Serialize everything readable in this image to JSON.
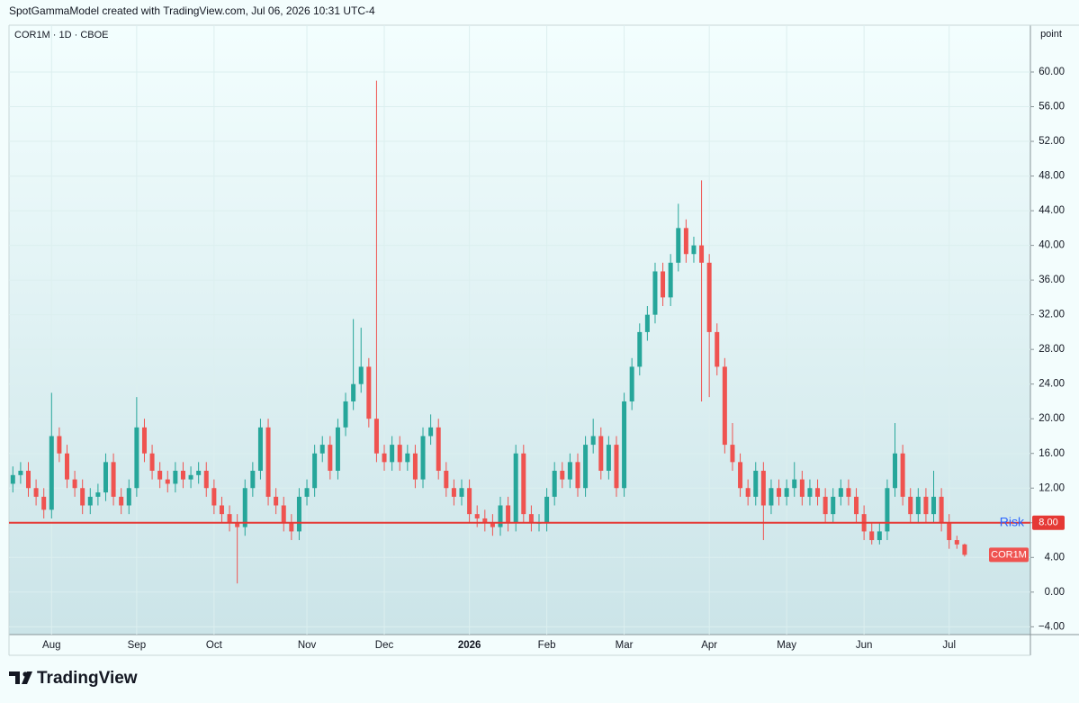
{
  "chart_data": {
    "type": "candlestick",
    "header": "SpotGammaModel created with TradingView.com, Jul 06, 2026 10:31 UTC-4",
    "symbol": "COR1M · 1D · CBOE",
    "y_unit": "point",
    "branding": "TradingView",
    "name": "COR1M",
    "up_color": "#26a69a",
    "down_color": "#ef5350",
    "grid": true,
    "ylim": [
      -4.9,
      65.4
    ],
    "yticks": [
      {
        "value": -4,
        "label": "−4.00"
      },
      {
        "value": 0,
        "label": "0.00"
      },
      {
        "value": 4,
        "label": "4.00"
      },
      {
        "value": 8,
        "label": "8.00"
      },
      {
        "value": 12,
        "label": "12.00"
      },
      {
        "value": 16,
        "label": "16.00"
      },
      {
        "value": 20,
        "label": "20.00"
      },
      {
        "value": 24,
        "label": "24.00"
      },
      {
        "value": 28,
        "label": "28.00"
      },
      {
        "value": 32,
        "label": "32.00"
      },
      {
        "value": 36,
        "label": "36.00"
      },
      {
        "value": 40,
        "label": "40.00"
      },
      {
        "value": 44,
        "label": "44.00"
      },
      {
        "value": 48,
        "label": "48.00"
      },
      {
        "value": 52,
        "label": "52.00"
      },
      {
        "value": 56,
        "label": "56.00"
      },
      {
        "value": 60,
        "label": "60.00"
      }
    ],
    "risk_line": {
      "value": 8,
      "label": "Risk",
      "value_label": "8.00",
      "color": "#e53935",
      "text_color": "#2962ff"
    },
    "categories": [
      null,
      null,
      null,
      null,
      null,
      "Aug",
      null,
      null,
      null,
      null,
      null,
      null,
      null,
      null,
      null,
      null,
      "Sep",
      null,
      null,
      null,
      null,
      null,
      null,
      null,
      null,
      null,
      "Oct",
      null,
      null,
      null,
      null,
      null,
      null,
      null,
      null,
      null,
      null,
      null,
      "Nov",
      null,
      null,
      null,
      null,
      null,
      null,
      null,
      null,
      null,
      "Dec",
      null,
      null,
      null,
      null,
      null,
      null,
      null,
      null,
      null,
      null,
      "2026",
      null,
      null,
      null,
      null,
      null,
      null,
      null,
      null,
      null,
      "Feb",
      null,
      null,
      null,
      null,
      null,
      null,
      null,
      null,
      null,
      "Mar",
      null,
      null,
      null,
      null,
      null,
      null,
      null,
      null,
      null,
      null,
      "Apr",
      null,
      null,
      null,
      null,
      null,
      null,
      null,
      null,
      null,
      "May",
      null,
      null,
      null,
      null,
      null,
      null,
      null,
      null,
      null,
      "Jun",
      null,
      null,
      null,
      null,
      null,
      null,
      null,
      null,
      null,
      null,
      "Jul",
      null,
      null,
      null,
      null,
      null,
      null,
      null,
      null,
      null,
      null
    ],
    "open": [
      12.5,
      13.5,
      14,
      12,
      11,
      9.5,
      18,
      16,
      13,
      12,
      10,
      11,
      11.5,
      15,
      11,
      10,
      12,
      19,
      16,
      14,
      13,
      12.5,
      14,
      13,
      13.5,
      14,
      12,
      10,
      9,
      8,
      7.5,
      12,
      14,
      19,
      11,
      10,
      8,
      7,
      11,
      12,
      16,
      17,
      14,
      19,
      22,
      24,
      26,
      20,
      16,
      15,
      17,
      15,
      16,
      13,
      18,
      19,
      14,
      12,
      11,
      12,
      9,
      8.5,
      8,
      7.5,
      10,
      8,
      16,
      9,
      8,
      8,
      11,
      14,
      13,
      15,
      12,
      17,
      18,
      14,
      17,
      12,
      22,
      26,
      30,
      32,
      37,
      34,
      38,
      42,
      39,
      40,
      38,
      30,
      26,
      17,
      15,
      12,
      11,
      14,
      10,
      12,
      11,
      12,
      13,
      11,
      12,
      11,
      9,
      11,
      12,
      11,
      9,
      7,
      6,
      7,
      12,
      16,
      11,
      9,
      11,
      9,
      11,
      8,
      6,
      5.5,
      null,
      null,
      null,
      null,
      null,
      null,
      null,
      null
    ],
    "high": [
      14.5,
      15,
      15,
      13,
      12,
      23,
      19,
      17,
      14,
      13,
      12,
      12.5,
      16,
      16,
      12,
      13,
      22.5,
      20,
      17,
      15,
      14,
      15,
      15,
      14.5,
      15,
      15,
      13,
      11,
      10,
      9,
      13,
      15,
      20,
      20,
      12,
      11,
      9,
      12,
      13,
      17,
      18,
      18,
      20,
      23,
      31.5,
      30.5,
      27,
      59,
      17,
      18,
      18,
      17,
      17,
      19,
      20.5,
      20,
      15,
      13,
      13,
      13,
      10,
      9.5,
      9,
      11,
      11,
      17,
      17,
      10,
      9,
      12,
      15,
      15,
      16,
      16,
      18,
      20,
      19,
      18,
      18,
      23,
      27,
      31,
      33,
      38,
      38,
      39,
      44.8,
      43,
      41,
      47.5,
      39,
      31,
      27,
      19.5,
      16,
      13,
      15,
      15,
      13,
      13,
      13,
      15,
      14,
      13,
      13,
      12,
      12,
      13,
      13,
      12,
      10,
      8,
      8,
      13,
      19.5,
      17,
      12,
      12,
      12,
      14,
      12,
      9,
      6.5,
      5.6,
      null,
      null,
      null,
      null,
      null,
      null,
      null,
      null
    ],
    "low": [
      11.5,
      12.5,
      11,
      10,
      8.5,
      8.5,
      15,
      12,
      11,
      9,
      9,
      10,
      10.5,
      10,
      9,
      9,
      11,
      15,
      13,
      12,
      11.5,
      11.5,
      12,
      12,
      12.5,
      11,
      9,
      8,
      7,
      1,
      6.5,
      11,
      13,
      10,
      9,
      7,
      6,
      6,
      10,
      11,
      15,
      13,
      13,
      18,
      21,
      23,
      19,
      15,
      14,
      14,
      14,
      14,
      12,
      12,
      17,
      13,
      11,
      10,
      10,
      8,
      7.5,
      7,
      6.5,
      6.5,
      7,
      7,
      8,
      7,
      7,
      7,
      10,
      12,
      12,
      11,
      11,
      16,
      13,
      13,
      11,
      11,
      21,
      25,
      29,
      31,
      33,
      33,
      37,
      38,
      38,
      22,
      22.5,
      25,
      16,
      14,
      11,
      10,
      10,
      6,
      9,
      10,
      10,
      11,
      10,
      10,
      10,
      8,
      8,
      10,
      10,
      8,
      6,
      5.5,
      5.5,
      6,
      11,
      10,
      8,
      8,
      8,
      8,
      7,
      5,
      5,
      4.1,
      null,
      null,
      null,
      null,
      null,
      null,
      null,
      null
    ],
    "close": [
      13.5,
      14,
      12,
      11,
      9.5,
      18,
      16,
      13,
      12,
      10,
      11,
      11.5,
      15,
      11,
      10,
      12,
      19,
      16,
      14,
      13,
      12.5,
      14,
      13,
      13.5,
      14,
      12,
      10,
      9,
      8,
      7.5,
      12,
      14,
      19,
      11,
      10,
      8,
      7,
      11,
      12,
      16,
      17,
      14,
      19,
      22,
      24,
      26,
      20,
      16,
      15,
      17,
      15,
      16,
      13,
      18,
      19,
      14,
      12,
      11,
      12,
      9,
      8.5,
      8,
      7.5,
      10,
      8,
      16,
      9,
      8,
      8,
      11,
      14,
      13,
      15,
      12,
      17,
      18,
      14,
      17,
      12,
      22,
      26,
      30,
      32,
      37,
      34,
      38,
      42,
      39,
      40,
      38,
      30,
      26,
      17,
      15,
      12,
      11,
      14,
      10,
      12,
      11,
      12,
      13,
      11,
      12,
      11,
      9,
      11,
      12,
      11,
      9,
      7,
      6,
      7,
      12,
      16,
      11,
      9,
      11,
      9,
      11,
      8,
      6,
      5.5,
      4.3,
      null,
      null,
      null,
      null,
      null,
      null,
      null,
      null
    ]
  }
}
